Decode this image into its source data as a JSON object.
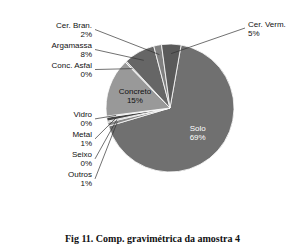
{
  "chart_data": {
    "type": "pie",
    "title": "Fig 11. Comp. gravimétrica da amostra 4",
    "categories": [
      "Solo",
      "Outros",
      "Seixo",
      "Metal",
      "Vidro",
      "Concreto",
      "Conc. Asfal",
      "Argamassa",
      "Cer. Bran.",
      "Cer. Verm."
    ],
    "values": [
      69,
      1,
      0.3,
      1,
      0.3,
      15,
      0.4,
      8,
      2,
      5
    ],
    "value_labels": [
      "69%",
      "1%",
      "0%",
      "1%",
      "0%",
      "15%",
      "0%",
      "8%",
      "2%",
      "5%"
    ],
    "colors": [
      "#707070",
      "#888888",
      "#555555",
      "#444444",
      "#aaaaaa",
      "#999999",
      "#bbbbbb",
      "#666666",
      "#808080",
      "#5a5a5a"
    ],
    "data_labels": true
  }
}
